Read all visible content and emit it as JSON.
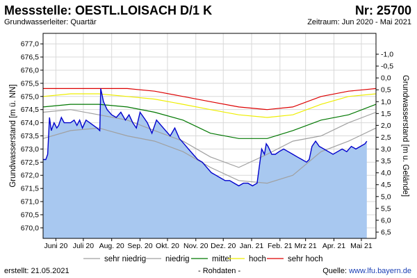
{
  "header": {
    "title": "Messstelle: OESTL.LOISACH D/1 K",
    "nr": "Nr: 25700",
    "subtitle": "Grundwasserleiter: Quartär",
    "zeitraum": "Zeitraum: Jun 2020 - Mai 2021"
  },
  "footer": {
    "created": "erstellt:  21.05.2021",
    "rohdaten": "- Rohdaten -",
    "source_label": "Quelle: ",
    "source_url": "www.lfu.bayern.de"
  },
  "colors": {
    "measured_fill": "#a8c8f0",
    "measured_line": "#0000cc",
    "sehr_niedrig": "#a0a0a0",
    "niedrig": "#a0a0a0",
    "mittel": "#007700",
    "hoch": "#eeee00",
    "sehr_hoch": "#dd0000",
    "grid": "#d8d8d8"
  },
  "chart_data": {
    "type": "line",
    "xlabel": "",
    "ylabel_left": "Grundwasserstand [m ü. NN]",
    "ylabel_right": "Grundwasserstand [m u. Gelände]",
    "ylim_left": [
      669.6,
      677.4
    ],
    "ylim_right": [
      -1.0,
      6.5
    ],
    "yticks_left": [
      670.0,
      670.5,
      671.0,
      671.5,
      672.0,
      672.5,
      673.0,
      673.5,
      674.0,
      674.5,
      675.0,
      675.5,
      676.0,
      676.5,
      677.0
    ],
    "yticks_left_labels": [
      "670,0",
      "670,5",
      "671,0",
      "671,5",
      "672,0",
      "672,5",
      "673,0",
      "673,5",
      "674,0",
      "674,5",
      "675,0",
      "675,5",
      "676,0",
      "676,5",
      "677,0"
    ],
    "yticks_right_labels": [
      "-1,0",
      "-0,5",
      "0,0",
      "0,5",
      "1,0",
      "1,5",
      "2,0",
      "2,5",
      "3,0",
      "3,5",
      "4,0",
      "4,5",
      "5,0",
      "5,5",
      "6,0",
      "6,5"
    ],
    "x_range": [
      "2020-06-01",
      "2021-05-31"
    ],
    "month_labels": [
      "Juni 20",
      "Juli 20",
      "Aug. 20",
      "Sep. 20",
      "Okt. 20",
      "Nov. 20",
      "Dez. 20",
      "Jan. 21",
      "Feb. 21",
      "Mrz 21",
      "Apr. 21",
      "Mai 21"
    ],
    "month_dates": [
      "2020-06-15",
      "2020-07-15",
      "2020-08-15",
      "2020-09-15",
      "2020-10-15",
      "2020-11-15",
      "2020-12-15",
      "2021-01-15",
      "2021-02-15",
      "2021-03-15",
      "2021-04-15",
      "2021-05-15"
    ],
    "grid": true,
    "legend_position": "bottom",
    "measured": {
      "x": [
        "2020-06-01",
        "2020-06-04",
        "2020-06-06",
        "2020-06-08",
        "2020-06-10",
        "2020-06-13",
        "2020-06-16",
        "2020-06-18",
        "2020-06-21",
        "2020-06-24",
        "2020-06-27",
        "2020-07-01",
        "2020-07-05",
        "2020-07-08",
        "2020-07-11",
        "2020-07-14",
        "2020-07-18",
        "2020-07-22",
        "2020-07-26",
        "2020-07-30",
        "2020-08-02",
        "2020-08-03",
        "2020-08-06",
        "2020-08-10",
        "2020-08-15",
        "2020-08-20",
        "2020-08-25",
        "2020-08-30",
        "2020-09-03",
        "2020-09-07",
        "2020-09-11",
        "2020-09-15",
        "2020-09-19",
        "2020-09-23",
        "2020-09-28",
        "2020-10-03",
        "2020-10-08",
        "2020-10-13",
        "2020-10-18",
        "2020-10-23",
        "2020-10-28",
        "2020-11-02",
        "2020-11-07",
        "2020-11-12",
        "2020-11-17",
        "2020-11-22",
        "2020-11-27",
        "2020-12-02",
        "2020-12-07",
        "2020-12-12",
        "2020-12-17",
        "2020-12-22",
        "2020-12-27",
        "2021-01-01",
        "2021-01-06",
        "2021-01-11",
        "2021-01-16",
        "2021-01-21",
        "2021-01-26",
        "2021-01-29",
        "2021-01-31",
        "2021-02-02",
        "2021-02-06",
        "2021-02-10",
        "2021-02-14",
        "2021-02-19",
        "2021-02-24",
        "2021-03-01",
        "2021-03-06",
        "2021-03-11",
        "2021-03-16",
        "2021-03-19",
        "2021-03-22",
        "2021-03-26",
        "2021-03-30",
        "2021-04-04",
        "2021-04-09",
        "2021-04-14",
        "2021-04-19",
        "2021-04-24",
        "2021-04-29",
        "2021-05-04",
        "2021-05-09",
        "2021-05-14",
        "2021-05-19",
        "2021-05-21"
      ],
      "y": [
        672.6,
        672.6,
        672.8,
        674.2,
        673.7,
        674.0,
        673.8,
        673.9,
        674.2,
        674.0,
        674.0,
        674.0,
        674.1,
        673.9,
        674.1,
        673.8,
        674.1,
        674.0,
        673.9,
        673.8,
        673.7,
        675.3,
        674.8,
        674.5,
        674.3,
        674.2,
        674.4,
        674.1,
        674.3,
        674.0,
        673.8,
        674.4,
        674.2,
        674.0,
        673.6,
        674.1,
        673.9,
        673.7,
        673.5,
        673.8,
        673.4,
        673.2,
        673.0,
        672.8,
        672.6,
        672.5,
        672.3,
        672.1,
        672.0,
        671.9,
        671.8,
        671.8,
        671.7,
        671.6,
        671.7,
        671.7,
        671.6,
        671.7,
        673.0,
        672.8,
        673.2,
        673.1,
        672.8,
        672.8,
        672.9,
        673.0,
        672.9,
        672.8,
        672.7,
        672.6,
        672.5,
        672.6,
        673.1,
        673.3,
        673.1,
        673.0,
        672.9,
        672.8,
        672.9,
        673.0,
        672.9,
        673.1,
        673.0,
        673.1,
        673.2,
        673.3
      ]
    },
    "series": [
      {
        "name": "sehr niedrig",
        "x": [
          "2020-06-01",
          "2020-07-01",
          "2020-08-01",
          "2020-09-01",
          "2020-10-01",
          "2020-11-01",
          "2020-12-01",
          "2021-01-01",
          "2021-02-01",
          "2021-03-01",
          "2021-04-01",
          "2021-05-01",
          "2021-05-31"
        ],
        "y": [
          673.4,
          673.7,
          673.8,
          673.5,
          673.3,
          672.9,
          672.3,
          671.8,
          671.7,
          672.0,
          672.9,
          673.3,
          673.8
        ]
      },
      {
        "name": "niedrig",
        "x": [
          "2020-06-01",
          "2020-07-01",
          "2020-08-01",
          "2020-09-01",
          "2020-10-01",
          "2020-11-01",
          "2020-12-01",
          "2021-01-01",
          "2021-02-01",
          "2021-03-01",
          "2021-04-01",
          "2021-05-01",
          "2021-05-31"
        ],
        "y": [
          674.4,
          674.5,
          674.3,
          674.1,
          673.7,
          673.3,
          672.7,
          672.3,
          672.8,
          673.3,
          673.5,
          674.0,
          674.4
        ]
      },
      {
        "name": "mittel",
        "x": [
          "2020-06-01",
          "2020-07-01",
          "2020-08-01",
          "2020-09-01",
          "2020-10-01",
          "2020-11-01",
          "2020-12-01",
          "2021-01-01",
          "2021-02-01",
          "2021-03-01",
          "2021-04-01",
          "2021-05-01",
          "2021-05-31"
        ],
        "y": [
          674.6,
          674.7,
          674.7,
          674.6,
          674.4,
          674.1,
          673.6,
          673.4,
          673.4,
          673.7,
          674.1,
          674.3,
          674.7
        ]
      },
      {
        "name": "hoch",
        "x": [
          "2020-06-01",
          "2020-07-01",
          "2020-08-01",
          "2020-09-01",
          "2020-10-01",
          "2020-11-01",
          "2020-12-01",
          "2021-01-01",
          "2021-02-01",
          "2021-03-01",
          "2021-04-01",
          "2021-05-01",
          "2021-05-31"
        ],
        "y": [
          675.0,
          675.1,
          675.1,
          675.0,
          674.9,
          674.7,
          674.5,
          674.3,
          674.2,
          674.3,
          674.7,
          675.0,
          675.1
        ]
      },
      {
        "name": "sehr hoch",
        "x": [
          "2020-06-01",
          "2020-07-01",
          "2020-08-01",
          "2020-09-01",
          "2020-10-01",
          "2020-11-01",
          "2020-12-01",
          "2021-01-01",
          "2021-02-01",
          "2021-03-01",
          "2021-04-01",
          "2021-05-01",
          "2021-05-31"
        ],
        "y": [
          675.3,
          675.3,
          675.3,
          675.3,
          675.2,
          675.0,
          674.8,
          674.6,
          674.5,
          674.6,
          675.0,
          675.2,
          675.3
        ]
      }
    ]
  }
}
